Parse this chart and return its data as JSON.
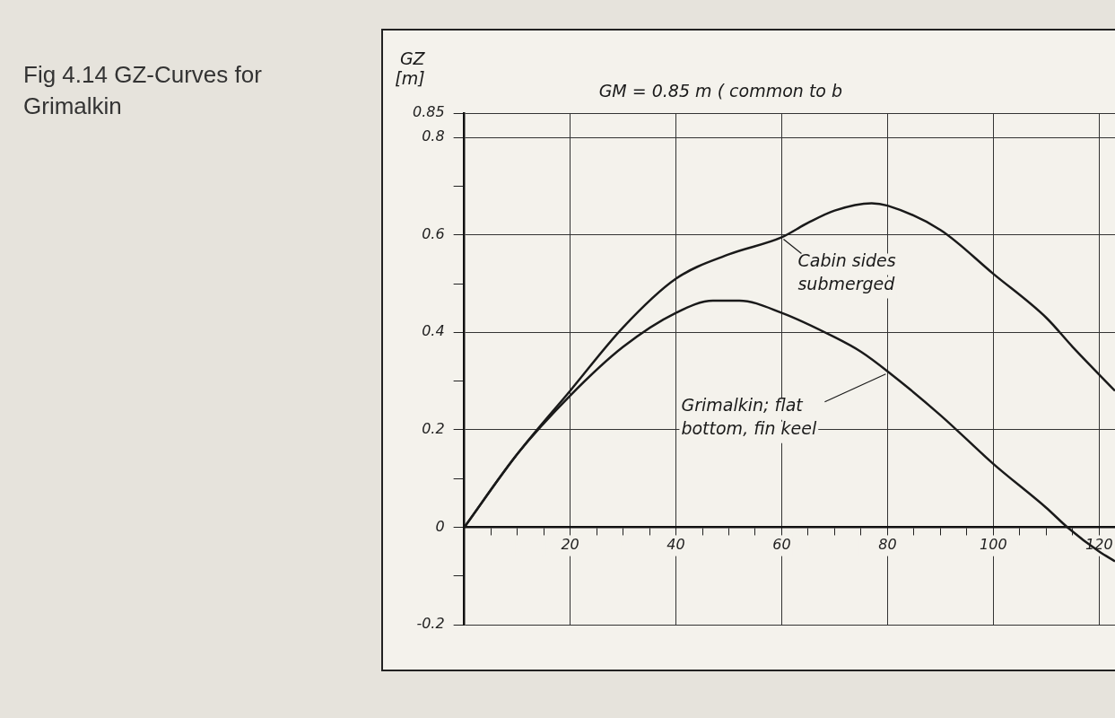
{
  "chart_data": {
    "type": "line",
    "title": "Fig 4.14 GZ-Curves for Grimalkin",
    "ylabel": "GZ [m]",
    "annotations": [
      "GM = 0.85 m ( common to b",
      {
        "text": "Cabin sides submerged",
        "x": 60,
        "y": 0.595
      }
    ],
    "series": [
      {
        "name": "Grimalkin; flat bottom, fin keel",
        "color": "#1a1a1a",
        "x": [
          0,
          10,
          20,
          30,
          40,
          47,
          52,
          60,
          70,
          75,
          80,
          90,
          100,
          110,
          114,
          120,
          123
        ],
        "values": [
          0,
          0.15,
          0.27,
          0.37,
          0.44,
          0.465,
          0.465,
          0.44,
          0.39,
          0.36,
          0.32,
          0.23,
          0.13,
          0.04,
          0,
          -0.05,
          -0.07
        ]
      },
      {
        "color": "#1a1a1a",
        "x": [
          0,
          10,
          20,
          30,
          40,
          50,
          60,
          65,
          70,
          77,
          80,
          90,
          100,
          110,
          115,
          123
        ],
        "values": [
          0,
          0.15,
          0.28,
          0.41,
          0.51,
          0.56,
          0.595,
          0.625,
          0.65,
          0.665,
          0.66,
          0.61,
          0.52,
          0.43,
          0.37,
          0.28
        ]
      }
    ],
    "xlim": [
      0,
      123
    ],
    "xticks": [
      {
        "value": 5,
        "label": null
      },
      {
        "value": 10,
        "label": null
      },
      {
        "value": 15,
        "label": null
      },
      20,
      {
        "value": 25,
        "label": null
      },
      {
        "value": 30,
        "label": null
      },
      {
        "value": 35,
        "label": null
      },
      40,
      {
        "value": 45,
        "label": null
      },
      {
        "value": 50,
        "label": null
      },
      {
        "value": 55,
        "label": null
      },
      60,
      {
        "value": 65,
        "label": null
      },
      {
        "value": 70,
        "label": null
      },
      {
        "value": 75,
        "label": null
      },
      80,
      {
        "value": 85,
        "label": null
      },
      {
        "value": 90,
        "label": null
      },
      {
        "value": 95,
        "label": null
      },
      100,
      {
        "value": 105,
        "label": null
      },
      {
        "value": 110,
        "label": null
      },
      {
        "value": 115,
        "label": null
      },
      120
    ],
    "ylim": [
      -0.2,
      0.85
    ],
    "yticks": [
      -0.2,
      {
        "value": -0.1,
        "label": null
      },
      0,
      {
        "value": 0.1,
        "label": null
      },
      0.2,
      {
        "value": 0.3,
        "label": null
      },
      0.4,
      {
        "value": 0.5,
        "label": null
      },
      0.6,
      {
        "value": 0.7,
        "label": null
      },
      0.8,
      0.85
    ],
    "grid": true,
    "legend": false,
    "marker": "none",
    "line_style": "solid"
  }
}
